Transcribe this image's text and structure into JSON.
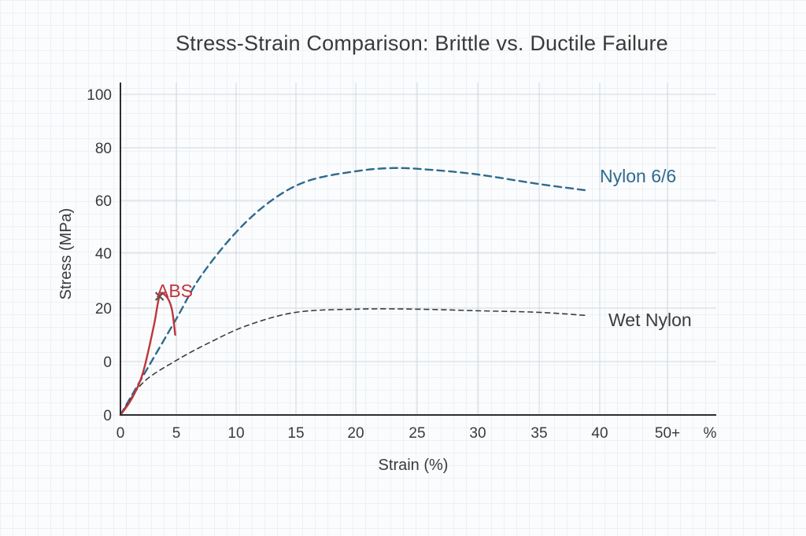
{
  "title": "Stress-Strain Comparison: Brittle vs. Ductile Failure",
  "chart_data": {
    "type": "line",
    "title": "Stress-Strain Comparison: Brittle vs. Ductile Failure",
    "xlabel": "Strain (%)",
    "ylabel": "Stress (MPa)",
    "xlim": [
      0,
      50
    ],
    "ylim": [
      0,
      100
    ],
    "x_tick_labels": [
      "0",
      "5",
      "10",
      "15",
      "20",
      "25",
      "30",
      "35",
      "40",
      "50+",
      "%"
    ],
    "y_tick_labels": [
      "0",
      "0",
      "20",
      "40",
      "60",
      "80",
      "100"
    ],
    "grid": true,
    "legend": "none (series labeled inline)",
    "series": [
      {
        "name": "Nylon 6/6",
        "color": "#2f6a8f",
        "style": "dashed",
        "points": [
          [
            0,
            0
          ],
          [
            2,
            12
          ],
          [
            5,
            30
          ],
          [
            7,
            43
          ],
          [
            10,
            57
          ],
          [
            13,
            67
          ],
          [
            16,
            73
          ],
          [
            20,
            76
          ],
          [
            23,
            77
          ],
          [
            26,
            76.5
          ],
          [
            30,
            75
          ],
          [
            35,
            72
          ],
          [
            39,
            70
          ]
        ]
      },
      {
        "name": "Wet Nylon",
        "color": "#3c3c3c",
        "style": "dashed",
        "points": [
          [
            0,
            0
          ],
          [
            2,
            10
          ],
          [
            5,
            17
          ],
          [
            8,
            23
          ],
          [
            11,
            28
          ],
          [
            15,
            32
          ],
          [
            20,
            33
          ],
          [
            25,
            33
          ],
          [
            30,
            32.5
          ],
          [
            35,
            32
          ],
          [
            39,
            31
          ]
        ]
      },
      {
        "name": "ABS",
        "color": "#c0353b",
        "style": "solid",
        "fracture_marker": [
          3.5,
          37
        ],
        "points": [
          [
            0,
            0
          ],
          [
            1,
            5
          ],
          [
            2,
            13
          ],
          [
            3,
            28
          ],
          [
            3.5,
            37
          ],
          [
            4.1,
            37
          ],
          [
            4.6,
            33
          ],
          [
            4.9,
            25
          ]
        ]
      }
    ]
  }
}
